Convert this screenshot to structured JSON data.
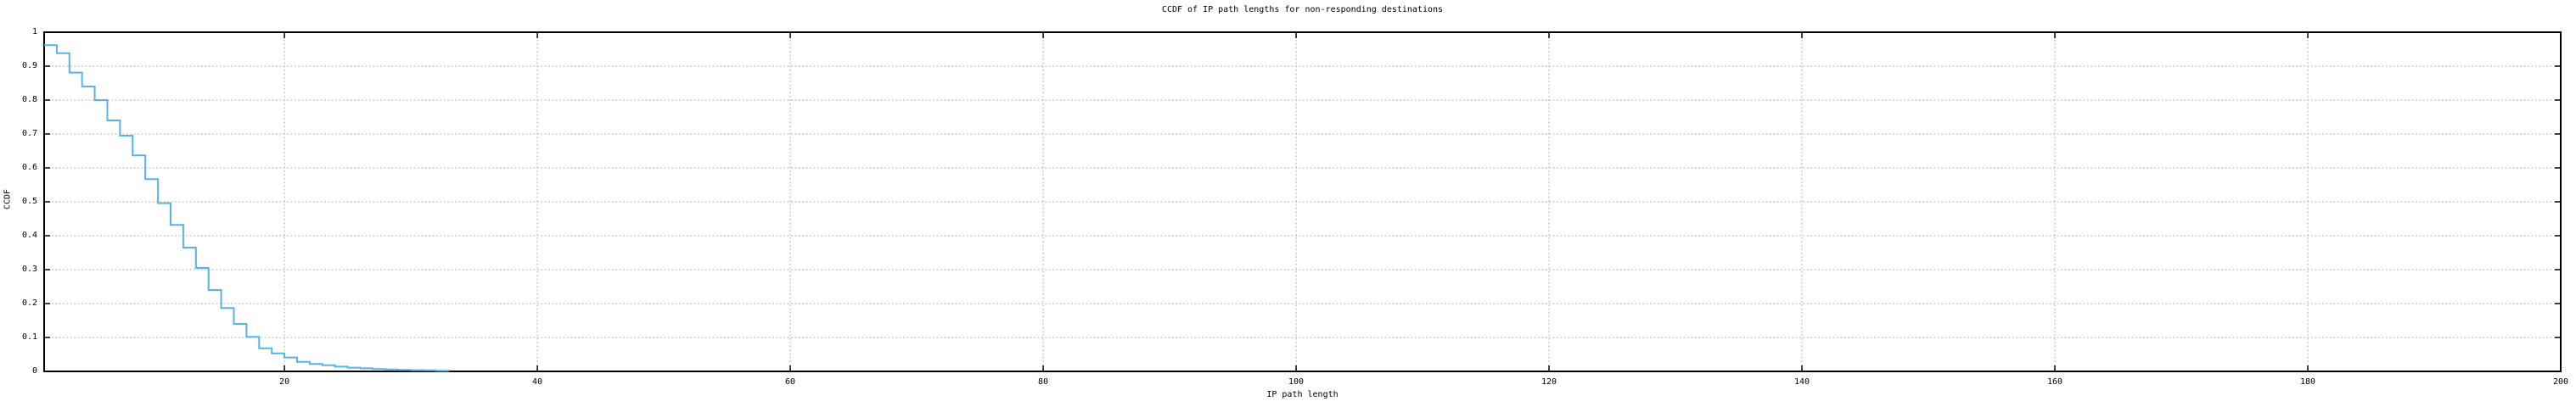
{
  "chart_data": {
    "type": "line",
    "line_style": "steps",
    "title": "CCDF of IP path lengths for non-responding destinations",
    "xlabel": "IP path length",
    "ylabel": "CCDF",
    "xlim": [
      1,
      200
    ],
    "ylim": [
      0,
      1
    ],
    "xticks": [
      20,
      40,
      60,
      80,
      100,
      120,
      140,
      160,
      180,
      200
    ],
    "yticks": [
      0,
      0.1,
      0.2,
      0.3,
      0.4,
      0.5,
      0.6,
      0.7,
      0.8,
      0.9,
      1
    ],
    "grid": true,
    "legend_position": "none",
    "series": [
      {
        "name": "CCDF of IP path lengths",
        "x": [
          1,
          2,
          3,
          4,
          5,
          6,
          7,
          8,
          9,
          10,
          11,
          12,
          13,
          14,
          15,
          16,
          17,
          18,
          19,
          20,
          21,
          22,
          23,
          24,
          25,
          26,
          27,
          28,
          29,
          30,
          31,
          32,
          33
        ],
        "y": [
          0.962,
          0.938,
          0.881,
          0.84,
          0.8,
          0.74,
          0.695,
          0.637,
          0.567,
          0.496,
          0.432,
          0.365,
          0.305,
          0.24,
          0.187,
          0.14,
          0.102,
          0.068,
          0.053,
          0.041,
          0.028,
          0.022,
          0.018,
          0.014,
          0.011,
          0.009,
          0.007,
          0.0055,
          0.0045,
          0.0035,
          0.003,
          0.002,
          0.001
        ]
      }
    ],
    "colors": {
      "curve": "#56b4e9",
      "grid": "#b3b3b3",
      "axis": "#000000",
      "text": "#000000",
      "background": "#ffffff"
    }
  }
}
